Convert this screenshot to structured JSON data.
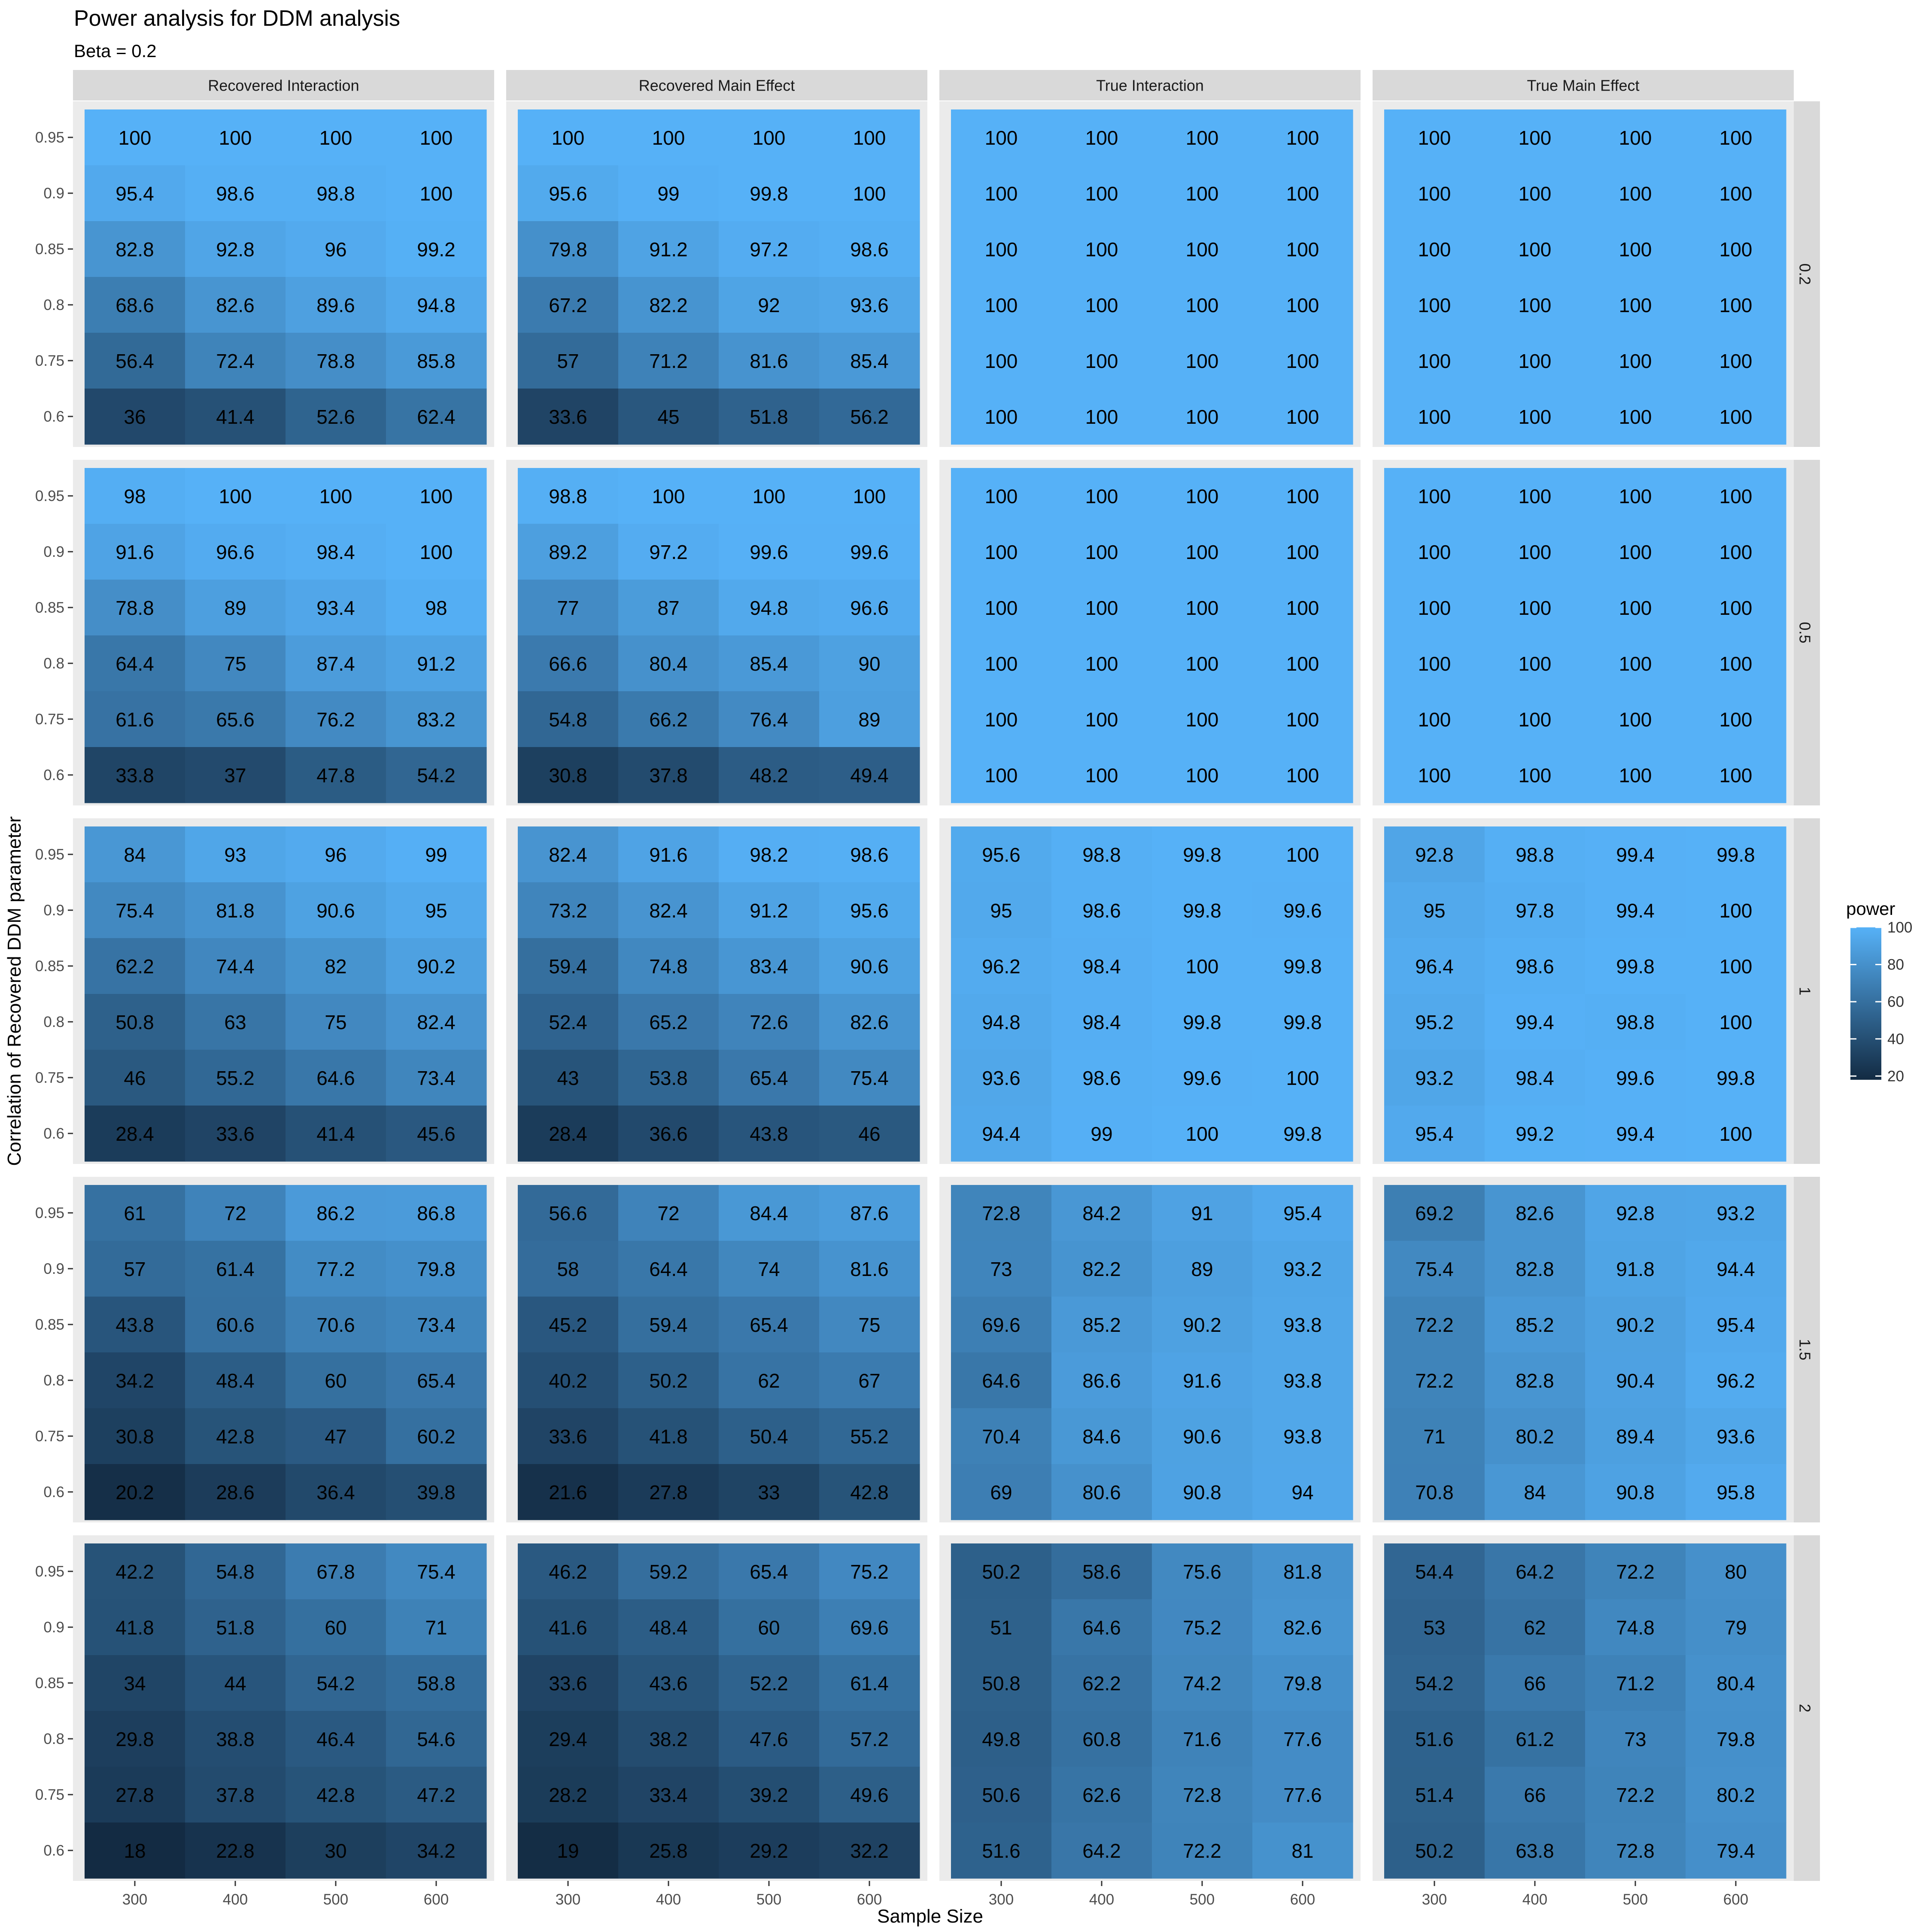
{
  "chart_data": {
    "type": "heatmap",
    "title": "Power analysis for DDM analysis",
    "subtitle": "Beta = 0.2",
    "xlabel": "Sample Size",
    "ylabel": "Correlation of Recovered DDM parameter",
    "x": [
      300,
      400,
      500,
      600
    ],
    "y": [
      0.95,
      0.9,
      0.85,
      0.8,
      0.75,
      0.6
    ],
    "facet_columns": [
      "Recovered Interaction",
      "Recovered Main Effect",
      "True Interaction",
      "True Main Effect"
    ],
    "facet_rows": [
      "0.2",
      "0.5",
      "1",
      "1.5",
      "2"
    ],
    "legend": {
      "title": "power",
      "position": "right",
      "ticks": [
        100,
        80,
        60,
        40,
        20
      ],
      "range": [
        18,
        100
      ],
      "low_color": "#132B43",
      "high_color": "#56B1F7"
    },
    "panel_background": "#EBEBEB",
    "strip_background": "#D9D9D9",
    "panels": [
      {
        "row": "0.2",
        "column": "Recovered Interaction",
        "values": [
          [
            100,
            100,
            100,
            100
          ],
          [
            95.4,
            98.6,
            98.8,
            100
          ],
          [
            82.8,
            92.8,
            96,
            99.2
          ],
          [
            68.6,
            82.6,
            89.6,
            94.8
          ],
          [
            56.4,
            72.4,
            78.8,
            85.8
          ],
          [
            36,
            41.4,
            52.6,
            62.4
          ]
        ]
      },
      {
        "row": "0.2",
        "column": "Recovered Main Effect",
        "values": [
          [
            100,
            100,
            100,
            100
          ],
          [
            95.6,
            99,
            99.8,
            100
          ],
          [
            79.8,
            91.2,
            97.2,
            98.6
          ],
          [
            67.2,
            82.2,
            92,
            93.6
          ],
          [
            57,
            71.2,
            81.6,
            85.4
          ],
          [
            33.6,
            45,
            51.8,
            56.2
          ]
        ]
      },
      {
        "row": "0.2",
        "column": "True Interaction",
        "values": [
          [
            100,
            100,
            100,
            100
          ],
          [
            100,
            100,
            100,
            100
          ],
          [
            100,
            100,
            100,
            100
          ],
          [
            100,
            100,
            100,
            100
          ],
          [
            100,
            100,
            100,
            100
          ],
          [
            100,
            100,
            100,
            100
          ]
        ]
      },
      {
        "row": "0.2",
        "column": "True Main Effect",
        "values": [
          [
            100,
            100,
            100,
            100
          ],
          [
            100,
            100,
            100,
            100
          ],
          [
            100,
            100,
            100,
            100
          ],
          [
            100,
            100,
            100,
            100
          ],
          [
            100,
            100,
            100,
            100
          ],
          [
            100,
            100,
            100,
            100
          ]
        ]
      },
      {
        "row": "0.5",
        "column": "Recovered Interaction",
        "values": [
          [
            98,
            100,
            100,
            100
          ],
          [
            91.6,
            96.6,
            98.4,
            100
          ],
          [
            78.8,
            89,
            93.4,
            98
          ],
          [
            64.4,
            75,
            87.4,
            91.2
          ],
          [
            61.6,
            65.6,
            76.2,
            83.2
          ],
          [
            33.8,
            37,
            47.8,
            54.2
          ]
        ]
      },
      {
        "row": "0.5",
        "column": "Recovered Main Effect",
        "values": [
          [
            98.8,
            100,
            100,
            100
          ],
          [
            89.2,
            97.2,
            99.6,
            99.6
          ],
          [
            77,
            87,
            94.8,
            96.6
          ],
          [
            66.6,
            80.4,
            85.4,
            90
          ],
          [
            54.8,
            66.2,
            76.4,
            89
          ],
          [
            30.8,
            37.8,
            48.2,
            49.4
          ]
        ]
      },
      {
        "row": "0.5",
        "column": "True Interaction",
        "values": [
          [
            100,
            100,
            100,
            100
          ],
          [
            100,
            100,
            100,
            100
          ],
          [
            100,
            100,
            100,
            100
          ],
          [
            100,
            100,
            100,
            100
          ],
          [
            100,
            100,
            100,
            100
          ],
          [
            100,
            100,
            100,
            100
          ]
        ]
      },
      {
        "row": "0.5",
        "column": "True Main Effect",
        "values": [
          [
            100,
            100,
            100,
            100
          ],
          [
            100,
            100,
            100,
            100
          ],
          [
            100,
            100,
            100,
            100
          ],
          [
            100,
            100,
            100,
            100
          ],
          [
            100,
            100,
            100,
            100
          ],
          [
            100,
            100,
            100,
            100
          ]
        ]
      },
      {
        "row": "1",
        "column": "Recovered Interaction",
        "values": [
          [
            84,
            93,
            96,
            99
          ],
          [
            75.4,
            81.8,
            90.6,
            95
          ],
          [
            62.2,
            74.4,
            82,
            90.2
          ],
          [
            50.8,
            63,
            75,
            82.4
          ],
          [
            46,
            55.2,
            64.6,
            73.4
          ],
          [
            28.4,
            33.6,
            41.4,
            45.6
          ]
        ]
      },
      {
        "row": "1",
        "column": "Recovered Main Effect",
        "values": [
          [
            82.4,
            91.6,
            98.2,
            98.6
          ],
          [
            73.2,
            82.4,
            91.2,
            95.6
          ],
          [
            59.4,
            74.8,
            83.4,
            90.6
          ],
          [
            52.4,
            65.2,
            72.6,
            82.6
          ],
          [
            43,
            53.8,
            65.4,
            75.4
          ],
          [
            28.4,
            36.6,
            43.8,
            46
          ]
        ]
      },
      {
        "row": "1",
        "column": "True Interaction",
        "values": [
          [
            95.6,
            98.8,
            99.8,
            100
          ],
          [
            95,
            98.6,
            99.8,
            99.6
          ],
          [
            96.2,
            98.4,
            100,
            99.8
          ],
          [
            94.8,
            98.4,
            99.8,
            99.8
          ],
          [
            93.6,
            98.6,
            99.6,
            100
          ],
          [
            94.4,
            99,
            100,
            99.8
          ]
        ]
      },
      {
        "row": "1",
        "column": "True Main Effect",
        "values": [
          [
            92.8,
            98.8,
            99.4,
            99.8
          ],
          [
            95,
            97.8,
            99.4,
            100
          ],
          [
            96.4,
            98.6,
            99.8,
            100
          ],
          [
            95.2,
            99.4,
            98.8,
            100
          ],
          [
            93.2,
            98.4,
            99.6,
            99.8
          ],
          [
            95.4,
            99.2,
            99.4,
            100
          ]
        ]
      },
      {
        "row": "1.5",
        "column": "Recovered Interaction",
        "values": [
          [
            61,
            72,
            86.2,
            86.8
          ],
          [
            57,
            61.4,
            77.2,
            79.8
          ],
          [
            43.8,
            60.6,
            70.6,
            73.4
          ],
          [
            34.2,
            48.4,
            60,
            65.4
          ],
          [
            30.8,
            42.8,
            47,
            60.2
          ],
          [
            20.2,
            28.6,
            36.4,
            39.8
          ]
        ]
      },
      {
        "row": "1.5",
        "column": "Recovered Main Effect",
        "values": [
          [
            56.6,
            72,
            84.4,
            87.6
          ],
          [
            58,
            64.4,
            74,
            81.6
          ],
          [
            45.2,
            59.4,
            65.4,
            75
          ],
          [
            40.2,
            50.2,
            62,
            67
          ],
          [
            33.6,
            41.8,
            50.4,
            55.2
          ],
          [
            21.6,
            27.8,
            33,
            42.8
          ]
        ]
      },
      {
        "row": "1.5",
        "column": "True Interaction",
        "values": [
          [
            72.8,
            84.2,
            91,
            95.4
          ],
          [
            73,
            82.2,
            89,
            93.2
          ],
          [
            69.6,
            85.2,
            90.2,
            93.8
          ],
          [
            64.6,
            86.6,
            91.6,
            93.8
          ],
          [
            70.4,
            84.6,
            90.6,
            93.8
          ],
          [
            69,
            80.6,
            90.8,
            94
          ]
        ]
      },
      {
        "row": "1.5",
        "column": "True Main Effect",
        "values": [
          [
            69.2,
            82.6,
            92.8,
            93.2
          ],
          [
            75.4,
            82.8,
            91.8,
            94.4
          ],
          [
            72.2,
            85.2,
            90.2,
            95.4
          ],
          [
            72.2,
            82.8,
            90.4,
            96.2
          ],
          [
            71,
            80.2,
            89.4,
            93.6
          ],
          [
            70.8,
            84,
            90.8,
            95.8
          ]
        ]
      },
      {
        "row": "2",
        "column": "Recovered Interaction",
        "values": [
          [
            42.2,
            54.8,
            67.8,
            75.4
          ],
          [
            41.8,
            51.8,
            60,
            71
          ],
          [
            34,
            44,
            54.2,
            58.8
          ],
          [
            29.8,
            38.8,
            46.4,
            54.6
          ],
          [
            27.8,
            37.8,
            42.8,
            47.2
          ],
          [
            18,
            22.8,
            30,
            34.2
          ]
        ]
      },
      {
        "row": "2",
        "column": "Recovered Main Effect",
        "values": [
          [
            46.2,
            59.2,
            65.4,
            75.2
          ],
          [
            41.6,
            48.4,
            60,
            69.6
          ],
          [
            33.6,
            43.6,
            52.2,
            61.4
          ],
          [
            29.4,
            38.2,
            47.6,
            57.2
          ],
          [
            28.2,
            33.4,
            39.2,
            49.6
          ],
          [
            19,
            25.8,
            29.2,
            32.2
          ]
        ]
      },
      {
        "row": "2",
        "column": "True Interaction",
        "values": [
          [
            50.2,
            58.6,
            75.6,
            81.8
          ],
          [
            51,
            64.6,
            75.2,
            82.6
          ],
          [
            50.8,
            62.2,
            74.2,
            79.8
          ],
          [
            49.8,
            60.8,
            71.6,
            77.6
          ],
          [
            50.6,
            62.6,
            72.8,
            77.6
          ],
          [
            51.6,
            64.2,
            72.2,
            81
          ]
        ]
      },
      {
        "row": "2",
        "column": "True Main Effect",
        "values": [
          [
            54.4,
            64.2,
            72.2,
            80
          ],
          [
            53,
            62,
            74.8,
            79
          ],
          [
            54.2,
            66,
            71.2,
            80.4
          ],
          [
            51.6,
            61.2,
            73,
            79.8
          ],
          [
            51.4,
            66,
            72.2,
            80.2
          ],
          [
            50.2,
            63.8,
            72.8,
            79.4
          ]
        ]
      }
    ]
  }
}
